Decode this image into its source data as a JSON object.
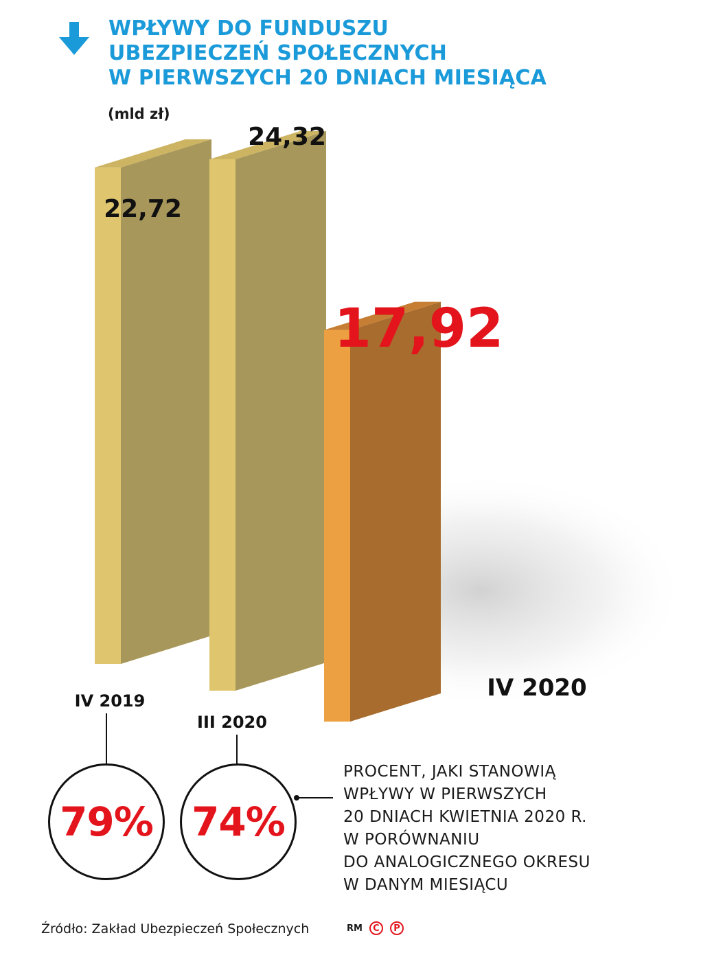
{
  "header": {
    "title_line1": "WPŁYWY DO FUNDUSZU",
    "title_line2": "UBEZPIECZEŃ SPOŁECZNYCH",
    "title_line3": "W PIERWSZYCH 20 DNIACH MIESIĄCA",
    "icon": "arrow-down-icon",
    "unit": "(mld zł)"
  },
  "colors": {
    "title": "#1a9ad9",
    "highlight": "#e3141b",
    "bar_front": "#dfc66e",
    "bar_side": "#a8975a",
    "bar_top": "#cdb463",
    "bar_highlight_front": "#eda041",
    "bar_highlight_side": "#a86d2e",
    "bar_highlight_top": "#c67e34"
  },
  "chart_data": {
    "type": "bar",
    "title": "WPŁYWY DO FUNDUSZU UBEZPIECZEŃ SPOŁECZNYCH W PIERWSZYCH 20 DNIACH MIESIĄCA",
    "ylabel": "(mld zł)",
    "categories": [
      "IV 2019",
      "III 2020",
      "IV 2020"
    ],
    "values": [
      22.72,
      24.32,
      17.92
    ],
    "value_labels": [
      "22,72",
      "24,32",
      "17,92"
    ],
    "highlight_index": 2,
    "ylim": [
      0,
      24.32
    ]
  },
  "comparisons": [
    {
      "period": "IV 2019",
      "percent": "79%"
    },
    {
      "period": "III 2020",
      "percent": "74%"
    }
  ],
  "note": {
    "line1": "PROCENT, JAKI STANOWIĄ",
    "line2": "WPŁYWY W PIERWSZYCH",
    "line3": "20 DNIACH KWIETNIA 2020 R.",
    "line4": "W PORÓWNANIU",
    "line5": "DO ANALOGICZNEGO OKRESU",
    "line6": "W DANYM MIESIĄCU"
  },
  "footer": {
    "source": "Źródło: Zakład Ubezpieczeń Społecznych",
    "initials": "RM",
    "badge1": "C",
    "badge2": "P"
  }
}
